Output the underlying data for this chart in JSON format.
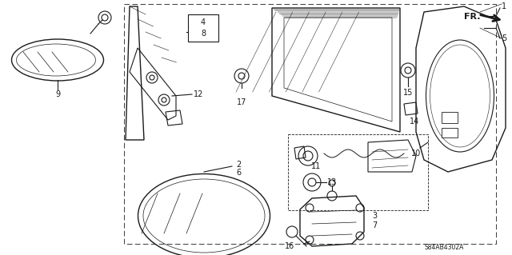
{
  "bg_color": "#ffffff",
  "line_color": "#1a1a1a",
  "fig_width": 6.4,
  "fig_height": 3.19,
  "dpi": 100,
  "watermark": "S84AB4302A"
}
